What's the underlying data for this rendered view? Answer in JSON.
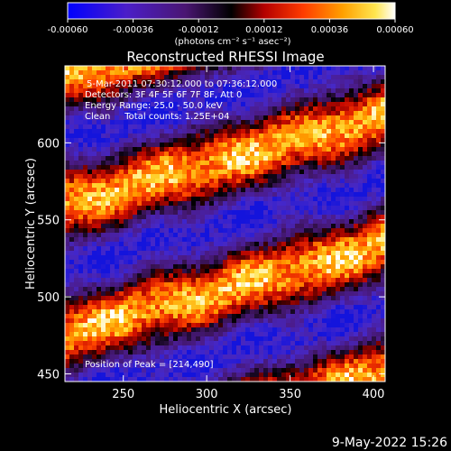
{
  "colorbar": {
    "tick_labels": [
      "-0.00060",
      "-0.00036",
      "-0.00012",
      "0.00012",
      "0.00036",
      "0.00060"
    ],
    "tick_values": [
      -0.0006,
      -0.00036,
      -0.00012,
      0.00012,
      0.00036,
      0.0006
    ],
    "range": [
      -0.0006,
      0.0006
    ],
    "units": "(photons cm⁻² s⁻¹ asec⁻²)"
  },
  "chart_data": {
    "type": "heatmap",
    "title": "Reconstructed RHESSI Image",
    "xlabel": "Heliocentric X (arcsec)",
    "ylabel": "Heliocentric Y (arcsec)",
    "xlim": [
      215,
      407
    ],
    "ylim": [
      445,
      650
    ],
    "x_ticks": [
      250,
      300,
      350,
      400
    ],
    "y_ticks": [
      450,
      500,
      550,
      600
    ],
    "x_tick_labels": [
      "250",
      "300",
      "350",
      "400"
    ],
    "y_tick_labels": [
      "450",
      "500",
      "550",
      "600"
    ],
    "annotations": [
      "5-Mar-2011 07:30:12.000 to 07:36:12.000",
      "Detectors: 3F 4F 5F 6F 7F 8F, Att 0",
      "Energy Range: 25.0 - 50.0 keV",
      "Clean     Total counts: 1.25E+04",
      "Position of Peak = [214,490]"
    ],
    "colormap": "red-temperature (blue-purple-black-red-yellow-white)",
    "bright_bands_center_y": [
      472,
      500,
      514,
      590
    ]
  },
  "footer": {
    "timestamp": "9-May-2022 15:26"
  }
}
